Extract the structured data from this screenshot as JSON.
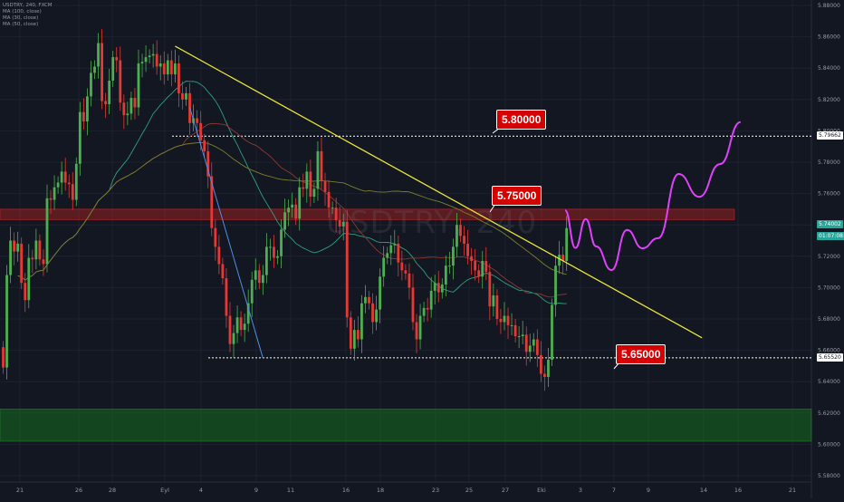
{
  "legend": {
    "symbol": "USDTRY, 240, FXCM",
    "ma1": "MA (100, close)",
    "ma2": "MA (30, close)",
    "ma3": "MA (50, close)"
  },
  "watermark": "USDTRY, 240",
  "colors": {
    "background": "#131722",
    "bull": "#4caf50",
    "bear": "#e53935",
    "trendline": "#e8e337",
    "wedge_line": "#4f8fe6",
    "forecast": "#e040fb",
    "resistance_zone": "#7f1d1d",
    "support_zone": "#0b4d12",
    "tag": "#d50000"
  },
  "chart_data": {
    "type": "candlestick",
    "title": "",
    "xlabel": "",
    "ylabel": "",
    "ylim": [
      5.57,
      5.88
    ],
    "y_ticks": [
      "5.88000",
      "5.86000",
      "5.84000",
      "5.82000",
      "5.80000",
      "5.78000",
      "5.76000",
      "5.74000",
      "5.72000",
      "5.70000",
      "5.68000",
      "5.66000",
      "5.64000",
      "5.62000",
      "5.60000",
      "5.58000"
    ],
    "x_ticks": [
      "21",
      "26",
      "28",
      "Eyl",
      "4",
      "9",
      "11",
      "16",
      "18",
      "23",
      "25",
      "27",
      "Eki",
      "3",
      "7",
      "9",
      "14",
      "16",
      "21"
    ],
    "levels": [
      {
        "label": "5.80000",
        "price": 5.7966
      },
      {
        "label": "5.75000",
        "price": 5.7485
      },
      {
        "label": "5.65000",
        "price": 5.6552
      }
    ],
    "price_badges": [
      {
        "text": "5.79662",
        "price": 5.7966
      },
      {
        "text": "5.74002",
        "price": 5.74
      },
      {
        "text": "01:07:08",
        "price": 5.734
      },
      {
        "text": "5.65520",
        "price": 5.6552
      }
    ],
    "zones": [
      {
        "name": "resistance",
        "from": 5.7434,
        "to": 5.75
      },
      {
        "name": "support",
        "from": 5.602,
        "to": 5.6225
      }
    ],
    "trendlines": [
      {
        "name": "descending",
        "points": [
          [
            47,
            5.854
          ],
          [
            191,
            5.668
          ]
        ]
      },
      {
        "name": "drop",
        "points": [
          [
            51,
            5.815
          ],
          [
            71,
            5.655
          ]
        ]
      }
    ],
    "forecast": [
      [
        0,
        5.7493
      ],
      [
        2,
        5.7253
      ],
      [
        4,
        5.7437
      ],
      [
        6,
        5.7263
      ],
      [
        9,
        5.7112
      ],
      [
        12,
        5.7368
      ],
      [
        15,
        5.7251
      ],
      [
        18,
        5.7315
      ],
      [
        22,
        5.7725
      ],
      [
        26,
        5.7579
      ],
      [
        30,
        5.7788
      ],
      [
        34,
        5.8056
      ]
    ],
    "closes": [
      5.649,
      5.708,
      5.73,
      5.723,
      5.728,
      5.703,
      5.692,
      5.719,
      5.718,
      5.73,
      5.718,
      5.715,
      5.757,
      5.756,
      5.764,
      5.767,
      5.774,
      5.767,
      5.766,
      5.756,
      5.779,
      5.812,
      5.806,
      5.822,
      5.837,
      5.841,
      5.856,
      5.819,
      5.817,
      5.832,
      5.847,
      5.845,
      5.818,
      5.81,
      5.811,
      5.821,
      5.815,
      5.843,
      5.844,
      5.847,
      5.848,
      5.849,
      5.841,
      5.843,
      5.836,
      5.845,
      5.836,
      5.843,
      5.824,
      5.82,
      5.824,
      5.805,
      5.808,
      5.805,
      5.794,
      5.787,
      5.771,
      5.738,
      5.726,
      5.715,
      5.706,
      5.682,
      5.664,
      5.671,
      5.681,
      5.673,
      5.677,
      5.69,
      5.705,
      5.711,
      5.703,
      5.708,
      5.726,
      5.726,
      5.719,
      5.72,
      5.737,
      5.748,
      5.751,
      5.753,
      5.744,
      5.764,
      5.763,
      5.774,
      5.758,
      5.763,
      5.787,
      5.768,
      5.761,
      5.751,
      5.751,
      5.743,
      5.739,
      5.742,
      5.681,
      5.661,
      5.673,
      5.667,
      5.69,
      5.694,
      5.69,
      5.678,
      5.686,
      5.707,
      5.719,
      5.722,
      5.727,
      5.728,
      5.716,
      5.711,
      5.709,
      5.7,
      5.678,
      5.667,
      5.682,
      5.687,
      5.686,
      5.698,
      5.703,
      5.697,
      5.702,
      5.714,
      5.714,
      5.726,
      5.74,
      5.733,
      5.728,
      5.72,
      5.717,
      5.711,
      5.707,
      5.717,
      5.71,
      5.688,
      5.695,
      5.68,
      5.678,
      5.682,
      5.676,
      5.676,
      5.669,
      5.669,
      5.67,
      5.659,
      5.663,
      5.667,
      5.657,
      5.645,
      5.643,
      5.654,
      5.689,
      5.714,
      5.721,
      5.717,
      5.738
    ]
  }
}
